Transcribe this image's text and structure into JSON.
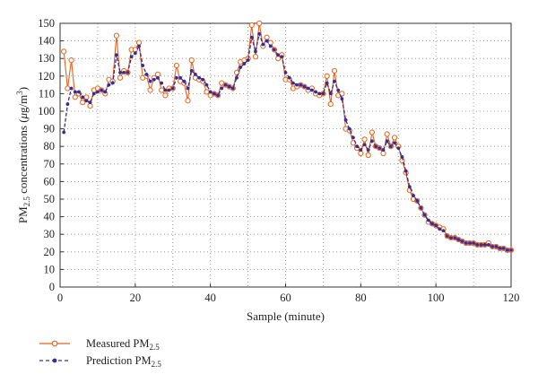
{
  "chart_data": {
    "type": "line",
    "xlabel": "Sample (minute)",
    "ylabel": "PM2.5 concentrations (μg/m3)",
    "ylabel_parts": {
      "pre": "PM",
      "sub": "2.5",
      "mid": " concentrations (",
      "mu": "μ",
      "unit": "g/m",
      "sup": "3",
      "post": ")"
    },
    "xlim": [
      0,
      120
    ],
    "ylim": [
      0,
      150
    ],
    "xticks": [
      0,
      20,
      40,
      60,
      80,
      100,
      120
    ],
    "yticks": [
      0,
      10,
      20,
      30,
      40,
      50,
      60,
      70,
      80,
      90,
      100,
      110,
      120,
      130,
      140,
      150
    ],
    "grid": true,
    "legend_position": "below",
    "colors": {
      "measured": "#e8611a",
      "prediction": "#3a2d8f"
    },
    "series": [
      {
        "name": "Measured PM2.5",
        "name_parts": {
          "pre": "Measured PM",
          "sub": "2.5"
        },
        "style": "solid line with open circles",
        "x": [
          1,
          2,
          3,
          4,
          5,
          6,
          7,
          8,
          9,
          10,
          11,
          12,
          13,
          14,
          15,
          16,
          17,
          18,
          19,
          20,
          21,
          22,
          23,
          24,
          25,
          26,
          27,
          28,
          29,
          30,
          31,
          32,
          33,
          34,
          35,
          36,
          37,
          38,
          39,
          40,
          41,
          42,
          43,
          44,
          45,
          46,
          47,
          48,
          49,
          50,
          51,
          52,
          53,
          54,
          55,
          56,
          57,
          58,
          59,
          60,
          61,
          62,
          63,
          64,
          65,
          66,
          67,
          68,
          69,
          70,
          71,
          72,
          73,
          74,
          75,
          76,
          77,
          78,
          79,
          80,
          81,
          82,
          83,
          84,
          85,
          86,
          87,
          88,
          89,
          90,
          91,
          92,
          93,
          94,
          95,
          96,
          97,
          98,
          99,
          100,
          101,
          102,
          103,
          104,
          105,
          106,
          107,
          108,
          109,
          110,
          111,
          112,
          113,
          114,
          115,
          116,
          117,
          118,
          119,
          120
        ],
        "y": [
          134,
          113,
          129,
          108,
          110,
          105,
          108,
          103,
          112,
          113,
          112,
          110,
          118,
          117,
          143,
          119,
          123,
          122,
          135,
          135,
          139,
          119,
          120,
          112,
          119,
          121,
          112,
          109,
          113,
          113,
          126,
          117,
          116,
          106,
          129,
          119,
          118,
          117,
          111,
          109,
          110,
          109,
          116,
          115,
          114,
          113,
          122,
          128,
          129,
          130,
          149,
          131,
          150,
          137,
          142,
          139,
          135,
          130,
          132,
          118,
          118,
          113,
          114,
          115,
          114,
          112,
          113,
          110,
          109,
          110,
          120,
          104,
          123,
          109,
          110,
          90,
          89,
          82,
          79,
          76,
          84,
          75,
          88,
          80,
          79,
          76,
          87,
          80,
          85,
          80,
          72,
          65,
          55,
          50,
          49,
          45,
          41,
          37,
          36,
          35,
          34,
          33,
          29,
          28,
          28,
          27,
          26,
          25,
          25,
          25,
          24,
          24,
          24,
          25,
          23,
          23,
          22,
          22,
          21,
          21
        ]
      },
      {
        "name": "Prediction PM2.5",
        "name_parts": {
          "pre": "Prediction PM",
          "sub": "2.5"
        },
        "style": "dashed line with filled dots",
        "x": [
          1,
          2,
          3,
          4,
          5,
          6,
          7,
          8,
          9,
          10,
          11,
          12,
          13,
          14,
          15,
          16,
          17,
          18,
          19,
          20,
          21,
          22,
          23,
          24,
          25,
          26,
          27,
          28,
          29,
          30,
          31,
          32,
          33,
          34,
          35,
          36,
          37,
          38,
          39,
          40,
          41,
          42,
          43,
          44,
          45,
          46,
          47,
          48,
          49,
          50,
          51,
          52,
          53,
          54,
          55,
          56,
          57,
          58,
          59,
          60,
          61,
          62,
          63,
          64,
          65,
          66,
          67,
          68,
          69,
          70,
          71,
          72,
          73,
          74,
          75,
          76,
          77,
          78,
          79,
          80,
          81,
          82,
          83,
          84,
          85,
          86,
          87,
          88,
          89,
          90,
          91,
          92,
          93,
          94,
          95,
          96,
          97,
          98,
          99,
          100,
          101,
          102,
          103,
          104,
          105,
          106,
          107,
          108,
          109,
          110,
          111,
          112,
          113,
          114,
          115,
          116,
          117,
          118,
          119,
          120
        ],
        "y": [
          88,
          104,
          113,
          111,
          111,
          108,
          106,
          105,
          110,
          111,
          112,
          111,
          115,
          116,
          132,
          122,
          122,
          122,
          131,
          133,
          137,
          126,
          121,
          117,
          118,
          119,
          116,
          112,
          112,
          113,
          119,
          119,
          117,
          113,
          123,
          121,
          119,
          118,
          115,
          111,
          110,
          109,
          113,
          115,
          114,
          113,
          119,
          125,
          127,
          129,
          142,
          134,
          144,
          138,
          140,
          137,
          135,
          132,
          131,
          122,
          119,
          116,
          115,
          115,
          114,
          113,
          112,
          111,
          110,
          110,
          116,
          110,
          117,
          112,
          107,
          95,
          90,
          85,
          80,
          78,
          81,
          78,
          83,
          80,
          79,
          78,
          83,
          80,
          82,
          79,
          74,
          66,
          57,
          52,
          49,
          45,
          41,
          38,
          36,
          35,
          33,
          32,
          29,
          28,
          28,
          27,
          26,
          25,
          25,
          25,
          24,
          24,
          24,
          24,
          23,
          23,
          22,
          22,
          21,
          21
        ]
      }
    ]
  }
}
